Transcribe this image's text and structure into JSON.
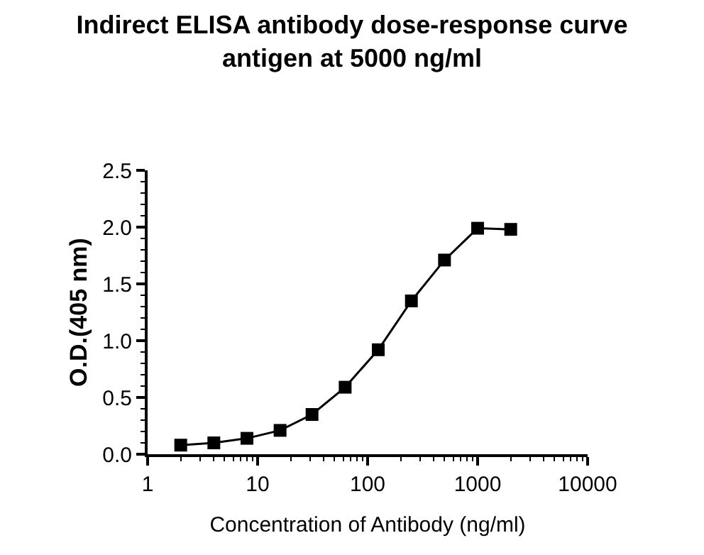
{
  "chart_data": {
    "type": "line",
    "title": "Indirect ELISA antibody dose-response curve\nantigen at 5000 ng/ml",
    "xlabel": "Concentration of Antibody (ng/ml)",
    "ylabel": "O.D.(405 nm)",
    "x": [
      2,
      4,
      8,
      16,
      31.25,
      62.5,
      125,
      250,
      500,
      1000,
      2000
    ],
    "series": [
      {
        "color": "#000000",
        "values": [
          0.08,
          0.1,
          0.14,
          0.21,
          0.35,
          0.59,
          0.92,
          1.35,
          1.71,
          1.99,
          1.98
        ]
      }
    ],
    "log": "x",
    "xlim": [
      1,
      10000
    ],
    "xticks": [
      1,
      10,
      100,
      1000,
      10000
    ],
    "ylim": [
      0,
      2.5
    ],
    "yticks": [
      {
        "value": 0,
        "label": "0.0"
      },
      {
        "value": 0.5,
        "label": "0.5"
      },
      {
        "value": 1,
        "label": "1.0"
      },
      {
        "value": 1.5,
        "label": "1.5"
      },
      {
        "value": 2,
        "label": "2.0"
      },
      {
        "value": 2.5,
        "label": "2.5"
      }
    ],
    "marker": "square",
    "line_style": "solid"
  }
}
